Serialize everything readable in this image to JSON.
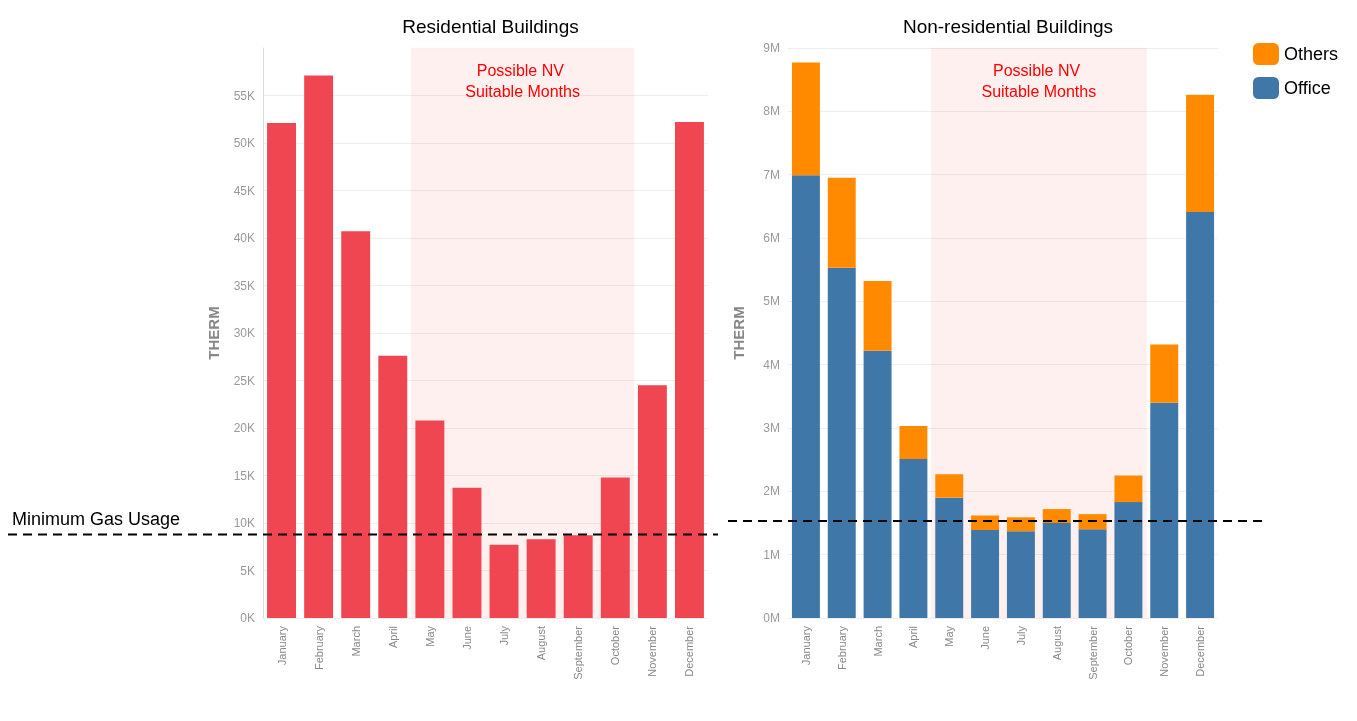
{
  "chart_data": [
    {
      "type": "bar",
      "title": "Residential Buildings",
      "ylabel": "THERM",
      "categories": [
        "January",
        "February",
        "March",
        "April",
        "May",
        "June",
        "July",
        "August",
        "September",
        "October",
        "November",
        "December"
      ],
      "series": [
        {
          "color": "#ef4652",
          "values": [
            52100,
            57100,
            40700,
            27600,
            20800,
            13700,
            7700,
            8300,
            8700,
            14800,
            24500,
            52200
          ]
        }
      ],
      "ylim": [
        0,
        60000
      ],
      "yticks": [
        {
          "value": 0,
          "label": "0K"
        },
        {
          "value": 5000,
          "label": "5K"
        },
        {
          "value": 10000,
          "label": "10K"
        },
        {
          "value": 15000,
          "label": "15K"
        },
        {
          "value": 20000,
          "label": "20K"
        },
        {
          "value": 25000,
          "label": "25K"
        },
        {
          "value": 30000,
          "label": "30K"
        },
        {
          "value": 35000,
          "label": "35K"
        },
        {
          "value": 40000,
          "label": "40K"
        },
        {
          "value": 45000,
          "label": "45K"
        },
        {
          "value": 50000,
          "label": "50K"
        },
        {
          "value": 55000,
          "label": "55K"
        }
      ],
      "grid": "y",
      "ref_lines": [
        {
          "axis": "y",
          "value": 8800,
          "label": "Minimum Gas Usage",
          "color": "#000000",
          "line_style": "dashed"
        }
      ],
      "bands": [
        {
          "axis": "x",
          "from": "May",
          "to": "October",
          "label": "Possible NV Suitable Months",
          "color": "#ff0000"
        }
      ]
    },
    {
      "type": "bar",
      "title": "Non-residential Buildings",
      "ylabel": "THERM",
      "stacked": true,
      "categories": [
        "January",
        "February",
        "March",
        "April",
        "May",
        "June",
        "July",
        "August",
        "September",
        "October",
        "November",
        "December"
      ],
      "series": [
        {
          "name": "Office",
          "color": "#3f77a9",
          "values": [
            6990000,
            5530000,
            4220000,
            2510000,
            1900000,
            1390000,
            1370000,
            1500000,
            1400000,
            1830000,
            3400000,
            6410000
          ]
        },
        {
          "name": "Others",
          "color": "#ff8a00",
          "values": [
            1780000,
            1420000,
            1100000,
            520000,
            370000,
            230000,
            220000,
            220000,
            240000,
            420000,
            920000,
            1850000
          ]
        }
      ],
      "ylim": [
        0,
        9000000
      ],
      "yticks": [
        {
          "value": 0,
          "label": "0M"
        },
        {
          "value": 1000000,
          "label": "1M"
        },
        {
          "value": 2000000,
          "label": "2M"
        },
        {
          "value": 3000000,
          "label": "3M"
        },
        {
          "value": 4000000,
          "label": "4M"
        },
        {
          "value": 5000000,
          "label": "5M"
        },
        {
          "value": 6000000,
          "label": "6M"
        },
        {
          "value": 7000000,
          "label": "7M"
        },
        {
          "value": 8000000,
          "label": "8M"
        },
        {
          "value": 9000000,
          "label": "9M"
        }
      ],
      "grid": "y",
      "legend": "top right",
      "ref_lines": [
        {
          "axis": "y",
          "value": 1530000,
          "color": "#000000",
          "line_style": "dashed"
        }
      ],
      "bands": [
        {
          "axis": "x",
          "from": "May",
          "to": "October",
          "label": "Possible NV Suitable Months",
          "color": "#ff0000"
        }
      ]
    }
  ]
}
